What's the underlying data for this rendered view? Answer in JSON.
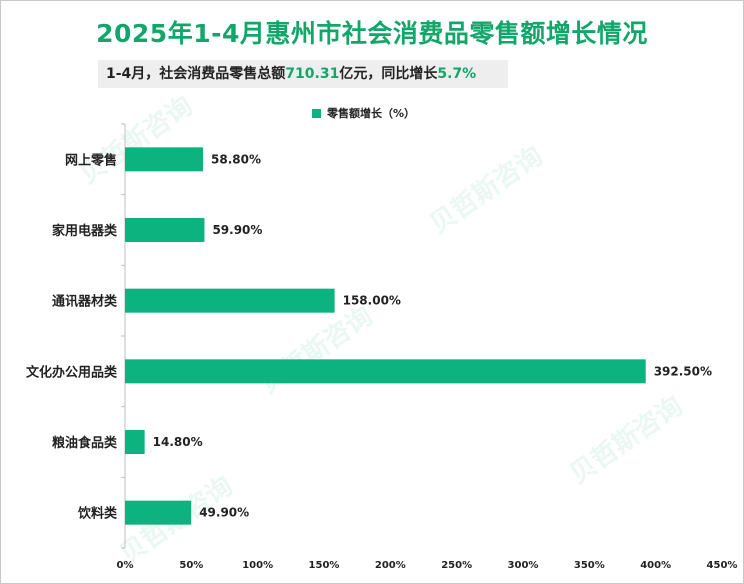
{
  "title": "2025年1-4月惠州市社会消费品零售额增长情况",
  "subtitle": {
    "prefix": "1-4月，社会消费品零售总额",
    "total": "710.31",
    "mid": "亿元，同比增长",
    "growth": "5.7%"
  },
  "watermark": "贝哲斯咨询",
  "colors": {
    "accent": "#12a66b",
    "bar": "#0db37f"
  },
  "chart_data": {
    "type": "bar",
    "orientation": "horizontal",
    "title": "2025年1-4月惠州市社会消费品零售额增长情况",
    "legend": [
      "零售额增长（%）"
    ],
    "categories": [
      "网上零售",
      "家用电器类",
      "通讯器材类",
      "文化办公用品类",
      "粮油食品类",
      "饮料类"
    ],
    "values": [
      58.8,
      59.9,
      158.0,
      392.5,
      14.8,
      49.9
    ],
    "value_labels": [
      "58.80%",
      "59.90%",
      "158.00%",
      "392.50%",
      "14.80%",
      "49.90%"
    ],
    "xlim": [
      0,
      450
    ],
    "xticks": [
      0,
      50,
      100,
      150,
      200,
      250,
      300,
      350,
      400,
      450
    ],
    "xtick_labels": [
      "0%",
      "50%",
      "100%",
      "150%",
      "200%",
      "250%",
      "300%",
      "350%",
      "400%",
      "450%"
    ],
    "grid": false
  }
}
